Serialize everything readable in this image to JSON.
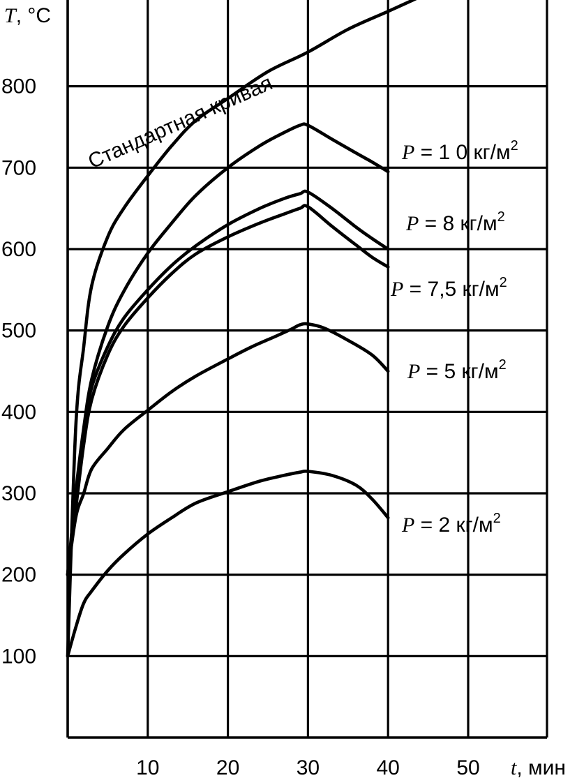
{
  "chart_data": {
    "type": "line",
    "xlabel_var": "t",
    "xlabel_unit": ", мин",
    "ylabel_var": "T",
    "ylabel_unit": ", °C",
    "xlim": [
      0,
      50
    ],
    "ylim": [
      0,
      900
    ],
    "x_ticks": [
      10,
      20,
      30,
      40,
      50
    ],
    "y_ticks": [
      100,
      200,
      300,
      400,
      500,
      600,
      700,
      800
    ],
    "grid": true,
    "series": [
      {
        "name": "Стандартная кривая",
        "points": [
          [
            0,
            100
          ],
          [
            1,
            380
          ],
          [
            2,
            480
          ],
          [
            3,
            555
          ],
          [
            5,
            615
          ],
          [
            7,
            650
          ],
          [
            10,
            690
          ],
          [
            13,
            727
          ],
          [
            16,
            758
          ],
          [
            20,
            785
          ],
          [
            25,
            818
          ],
          [
            30,
            842
          ],
          [
            35,
            870
          ],
          [
            40,
            892
          ],
          [
            44,
            910
          ],
          [
            47,
            925
          ]
        ]
      },
      {
        "name": "P = 10 кг/м²",
        "points": [
          [
            0,
            200
          ],
          [
            1,
            300
          ],
          [
            2,
            380
          ],
          [
            3,
            440
          ],
          [
            5,
            505
          ],
          [
            7,
            548
          ],
          [
            10,
            595
          ],
          [
            13,
            632
          ],
          [
            16,
            666
          ],
          [
            20,
            700
          ],
          [
            24,
            727
          ],
          [
            27,
            743
          ],
          [
            29,
            752
          ],
          [
            30,
            752
          ],
          [
            33,
            735
          ],
          [
            36,
            718
          ],
          [
            38,
            707
          ],
          [
            40,
            695
          ]
        ]
      },
      {
        "name": "P = 8 кг/м²",
        "points": [
          [
            0,
            200
          ],
          [
            1,
            290
          ],
          [
            2,
            375
          ],
          [
            3,
            430
          ],
          [
            5,
            480
          ],
          [
            7,
            515
          ],
          [
            10,
            550
          ],
          [
            13,
            580
          ],
          [
            16,
            604
          ],
          [
            20,
            630
          ],
          [
            24,
            650
          ],
          [
            27,
            662
          ],
          [
            29,
            668
          ],
          [
            30,
            670
          ],
          [
            33,
            650
          ],
          [
            36,
            627
          ],
          [
            38,
            613
          ],
          [
            40,
            600
          ]
        ]
      },
      {
        "name": "P = 7,5 кг/м²",
        "points": [
          [
            0,
            200
          ],
          [
            1,
            280
          ],
          [
            2,
            360
          ],
          [
            3,
            415
          ],
          [
            5,
            470
          ],
          [
            7,
            505
          ],
          [
            10,
            540
          ],
          [
            13,
            570
          ],
          [
            16,
            594
          ],
          [
            20,
            615
          ],
          [
            24,
            632
          ],
          [
            27,
            643
          ],
          [
            29,
            650
          ],
          [
            30,
            652
          ],
          [
            33,
            628
          ],
          [
            36,
            605
          ],
          [
            38,
            590
          ],
          [
            40,
            578
          ]
        ]
      },
      {
        "name": "P = 5 кг/м²",
        "points": [
          [
            0,
            200
          ],
          [
            1,
            270
          ],
          [
            2,
            300
          ],
          [
            3,
            330
          ],
          [
            5,
            355
          ],
          [
            7,
            378
          ],
          [
            10,
            402
          ],
          [
            13,
            425
          ],
          [
            16,
            444
          ],
          [
            20,
            465
          ],
          [
            23,
            480
          ],
          [
            26,
            493
          ],
          [
            28,
            502
          ],
          [
            29,
            507
          ],
          [
            30,
            508
          ],
          [
            32,
            503
          ],
          [
            35,
            488
          ],
          [
            38,
            470
          ],
          [
            40,
            450
          ]
        ]
      },
      {
        "name": "P = 2 кг/м²",
        "points": [
          [
            0,
            100
          ],
          [
            1,
            135
          ],
          [
            2,
            165
          ],
          [
            3,
            180
          ],
          [
            5,
            205
          ],
          [
            7,
            225
          ],
          [
            10,
            250
          ],
          [
            13,
            270
          ],
          [
            16,
            288
          ],
          [
            20,
            302
          ],
          [
            24,
            315
          ],
          [
            27,
            322
          ],
          [
            29,
            326
          ],
          [
            30,
            327
          ],
          [
            33,
            322
          ],
          [
            36,
            310
          ],
          [
            38,
            293
          ],
          [
            40,
            270
          ]
        ]
      }
    ],
    "curve_labels": [
      {
        "text": "Стандартная кривая"
      },
      {
        "var": "P",
        "rest": " = 1 0 кг/м",
        "sup": "2"
      },
      {
        "var": "P",
        "rest": " = 8 кг/м",
        "sup": "2"
      },
      {
        "var": "P",
        "rest": " = 7,5 кг/м",
        "sup": "2"
      },
      {
        "var": "P",
        "rest": " = 5 кг/м",
        "sup": "2"
      },
      {
        "var": "P",
        "rest": " = 2 кг/м",
        "sup": "2"
      }
    ]
  }
}
